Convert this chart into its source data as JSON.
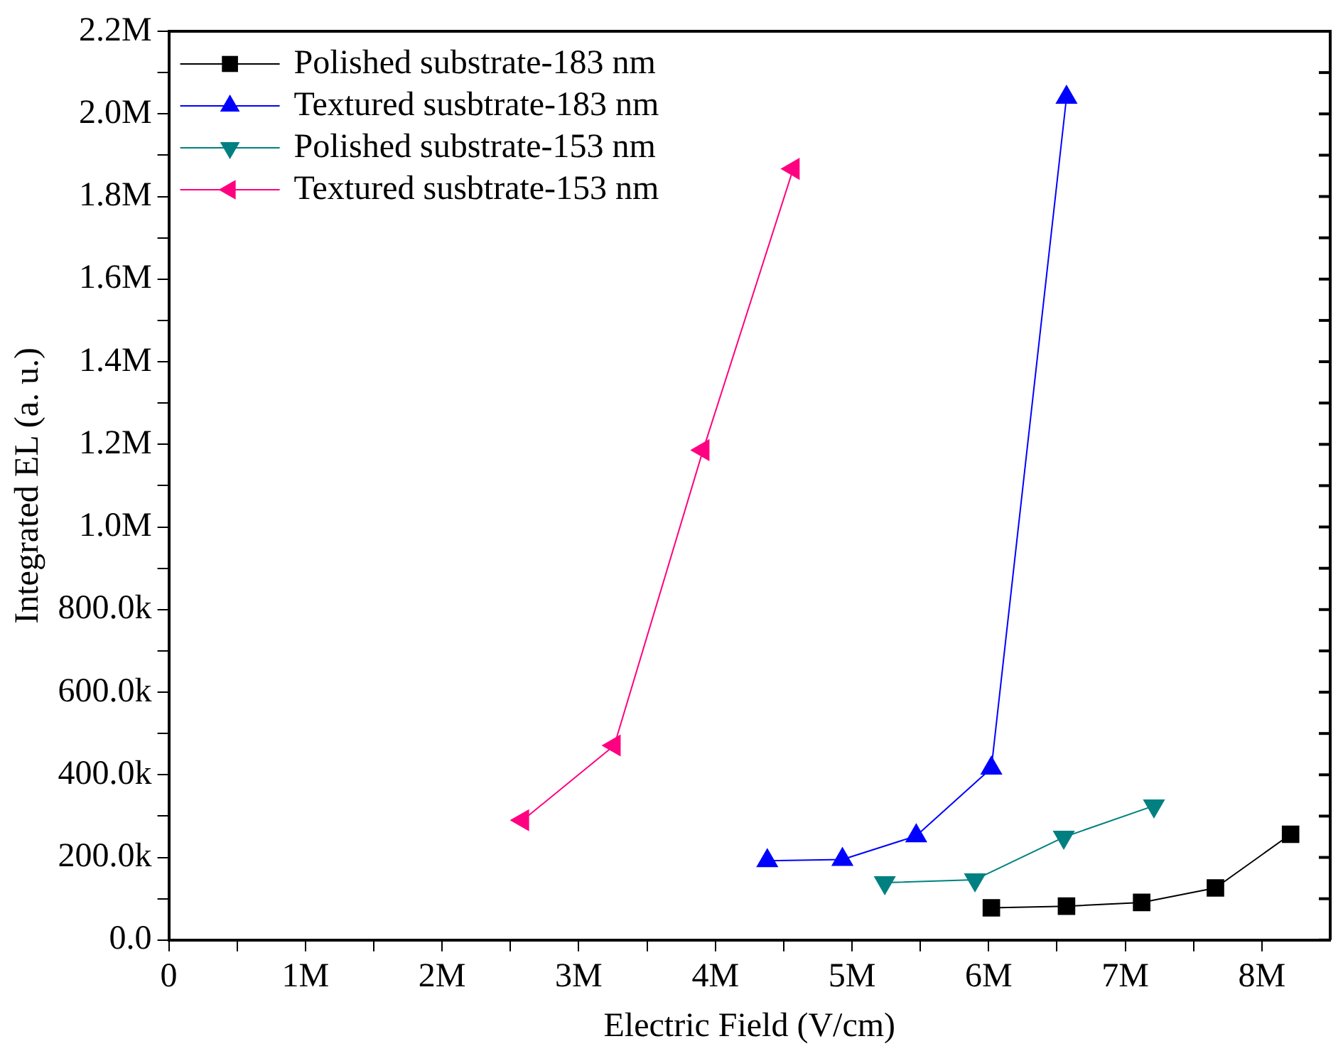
{
  "chart_data": {
    "type": "line",
    "xlabel": "Electric Field (V/cm)",
    "ylabel": "Integrated EL (a. u.)",
    "xlim": [
      0,
      8500000
    ],
    "xticks": [
      0,
      {
        "value": 500000,
        "label": null
      },
      {
        "value": 1000000,
        "label": "1M"
      },
      {
        "value": 1500000,
        "label": null
      },
      {
        "value": 2000000,
        "label": "2M"
      },
      {
        "value": 2500000,
        "label": null
      },
      {
        "value": 3000000,
        "label": "3M"
      },
      {
        "value": 3500000,
        "label": null
      },
      {
        "value": 4000000,
        "label": "4M"
      },
      {
        "value": 4500000,
        "label": null
      },
      {
        "value": 5000000,
        "label": "5M"
      },
      {
        "value": 5500000,
        "label": null
      },
      {
        "value": 6000000,
        "label": "6M"
      },
      {
        "value": 6500000,
        "label": null
      },
      {
        "value": 7000000,
        "label": "7M"
      },
      {
        "value": 7500000,
        "label": null
      },
      {
        "value": 8000000,
        "label": "8M"
      }
    ],
    "ylim": [
      0,
      2200000
    ],
    "yticks": [
      {
        "value": 0,
        "label": "0.0"
      },
      {
        "value": 100000,
        "label": null
      },
      {
        "value": 200000,
        "label": "200.0k"
      },
      {
        "value": 300000,
        "label": null
      },
      {
        "value": 400000,
        "label": "400.0k"
      },
      {
        "value": 500000,
        "label": null
      },
      {
        "value": 600000,
        "label": "600.0k"
      },
      {
        "value": 700000,
        "label": null
      },
      {
        "value": 800000,
        "label": "800.0k"
      },
      {
        "value": 900000,
        "label": null
      },
      {
        "value": 1000000,
        "label": "1.0M"
      },
      {
        "value": 1100000,
        "label": null
      },
      {
        "value": 1200000,
        "label": "1.2M"
      },
      {
        "value": 1300000,
        "label": null
      },
      {
        "value": 1400000,
        "label": "1.4M"
      },
      {
        "value": 1500000,
        "label": null
      },
      {
        "value": 1600000,
        "label": "1.6M"
      },
      {
        "value": 1700000,
        "label": null
      },
      {
        "value": 1800000,
        "label": "1.8M"
      },
      {
        "value": 1900000,
        "label": null
      },
      {
        "value": 2000000,
        "label": "2.0M"
      },
      {
        "value": 2100000,
        "label": null
      },
      {
        "value": 2200000,
        "label": "2.2M"
      }
    ],
    "grid": false,
    "legend": "top left",
    "line_style": "solid",
    "series": [
      {
        "name": "Polished substrate-183 nm",
        "color": "#000000",
        "marker": "square",
        "x": [
          6020000,
          6570000,
          7120000,
          7660000,
          8210000
        ],
        "values": [
          78000,
          82000,
          91000,
          126000,
          256000
        ]
      },
      {
        "name": "Textured susbtrate-183 nm",
        "color": "#0000ff",
        "marker": "triangle",
        "x": [
          4380000,
          4930000,
          5470000,
          6020000,
          6570000
        ],
        "values": [
          192000,
          195000,
          252000,
          416000,
          2040000
        ]
      },
      {
        "name": "Polished substrate-153 nm",
        "color": "#008080",
        "marker": "triangle-down",
        "x": [
          5240000,
          5900000,
          6550000,
          7210000
        ],
        "values": [
          139000,
          146000,
          249000,
          325000
        ]
      },
      {
        "name": "Textured susbtrate-153 nm",
        "color": "#ff0080",
        "marker": "triangle-left",
        "x": [
          2590000,
          3260000,
          3910000,
          4570000
        ],
        "values": [
          290000,
          471000,
          1186000,
          1867000
        ]
      }
    ]
  }
}
